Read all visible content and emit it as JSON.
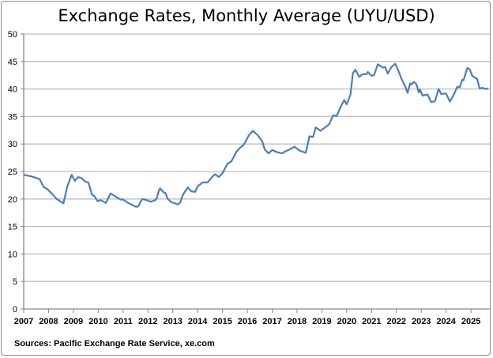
{
  "chart_data": {
    "type": "line",
    "title": "Exchange Rates, Monthly Average (UYU/USD)",
    "source": "Sources: Pacific Exchange Rate Service, xe.com",
    "xlabel": "",
    "ylabel": "",
    "xlim": [
      2007,
      2025.76
    ],
    "ylim": [
      0,
      50
    ],
    "yticks": [
      0,
      5,
      10,
      15,
      20,
      25,
      30,
      35,
      40,
      45,
      50
    ],
    "xticks": [
      2007,
      2008,
      2009,
      2010,
      2011,
      2012,
      2013,
      2014,
      2015,
      2016,
      2017,
      2018,
      2019,
      2020,
      2021,
      2022,
      2023,
      2024,
      2025
    ],
    "grid": "horizontal",
    "legend": "none",
    "line_color": "#4a7ebb",
    "series": [
      {
        "x": [
          2007.0,
          2007.32,
          2007.64,
          2007.8,
          2007.95,
          2008.17,
          2008.33,
          2008.5,
          2008.6,
          2008.75,
          2008.93,
          2009.06,
          2009.2,
          2009.33,
          2009.46,
          2009.6,
          2009.75,
          2009.85,
          2009.97,
          2010.1,
          2010.3,
          2010.5,
          2010.75,
          2010.9,
          2011.0,
          2011.2,
          2011.5,
          2011.6,
          2011.77,
          2011.95,
          2012.1,
          2012.3,
          2012.35,
          2012.46,
          2012.5,
          2012.63,
          2012.7,
          2012.8,
          2012.95,
          2013.1,
          2013.2,
          2013.3,
          2013.4,
          2013.6,
          2013.75,
          2013.9,
          2014.0,
          2014.2,
          2014.4,
          2014.6,
          2014.7,
          2014.85,
          2015.0,
          2015.2,
          2015.37,
          2015.55,
          2015.7,
          2015.85,
          2016.05,
          2016.22,
          2016.4,
          2016.6,
          2016.7,
          2016.85,
          2017.0,
          2017.2,
          2017.4,
          2017.55,
          2017.7,
          2017.9,
          2018.1,
          2018.35,
          2018.5,
          2018.65,
          2018.75,
          2018.95,
          2019.1,
          2019.3,
          2019.45,
          2019.6,
          2019.75,
          2019.9,
          2020.0,
          2020.15,
          2020.25,
          2020.35,
          2020.5,
          2020.65,
          2020.8,
          2020.85,
          2021.0,
          2021.1,
          2021.25,
          2021.45,
          2021.55,
          2021.65,
          2021.8,
          2021.95,
          2022.1,
          2022.2,
          2022.35,
          2022.45,
          2022.55,
          2022.6,
          2022.7,
          2022.8,
          2022.9,
          2022.95,
          2023.05,
          2023.25,
          2023.4,
          2023.55,
          2023.7,
          2023.8,
          2024.0,
          2024.15,
          2024.3,
          2024.45,
          2024.55,
          2024.65,
          2024.7,
          2024.85,
          2024.95,
          2025.05,
          2025.25,
          2025.35,
          2025.45,
          2025.6,
          2025.7
        ],
        "values": [
          24.4,
          24.1,
          23.6,
          22.2,
          21.8,
          20.8,
          20.0,
          19.5,
          19.2,
          22.2,
          24.4,
          23.3,
          24.0,
          23.8,
          23.2,
          23.0,
          20.8,
          20.5,
          19.6,
          19.8,
          19.3,
          21.0,
          20.3,
          19.9,
          19.9,
          19.3,
          18.6,
          18.6,
          20.0,
          19.8,
          19.5,
          19.8,
          20.1,
          21.8,
          21.9,
          21.2,
          21.1,
          20.0,
          19.4,
          19.2,
          19.0,
          19.4,
          20.7,
          22.1,
          21.4,
          21.3,
          22.3,
          23.0,
          23.0,
          24.1,
          24.5,
          24.0,
          24.7,
          26.4,
          26.9,
          28.5,
          29.3,
          29.8,
          31.5,
          32.4,
          31.7,
          30.5,
          29.0,
          28.3,
          28.9,
          28.5,
          28.3,
          28.7,
          29.0,
          29.5,
          28.8,
          28.4,
          31.4,
          31.3,
          33.0,
          32.4,
          32.9,
          33.6,
          35.2,
          35.1,
          36.7,
          38.0,
          37.2,
          39.0,
          42.9,
          43.5,
          42.2,
          42.7,
          42.7,
          43.1,
          42.4,
          42.5,
          44.5,
          43.9,
          44.0,
          42.8,
          44.0,
          44.6,
          43.1,
          41.9,
          40.5,
          39.3,
          41.0,
          40.8,
          41.3,
          40.9,
          39.4,
          39.9,
          38.8,
          39.0,
          37.6,
          37.8,
          40.0,
          39.1,
          39.2,
          37.7,
          38.9,
          40.4,
          40.3,
          41.7,
          41.6,
          43.8,
          43.6,
          42.4,
          41.8,
          40.1,
          40.2,
          40.0,
          40.1
        ]
      }
    ]
  }
}
